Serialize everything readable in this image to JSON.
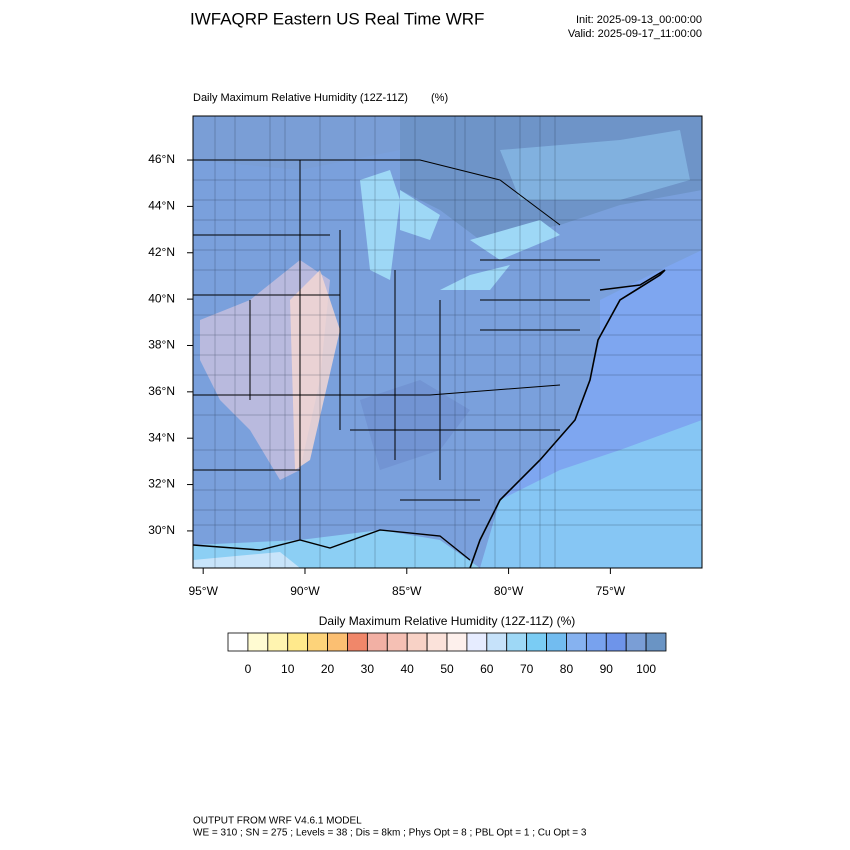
{
  "header": {
    "title": "IWFAQRP Eastern US Real Time WRF",
    "init": "Init: 2025-09-13_00:00:00",
    "valid": "Valid: 2025-09-17_11:00:00"
  },
  "map": {
    "title": "Daily Maximum Relative Humidity (12Z-11Z)",
    "units": "(%)",
    "xlim": [
      -95.5,
      -70.5
    ],
    "ylim": [
      28.4,
      47.9
    ],
    "xticks": [
      {
        "value": -95,
        "label": "95°W"
      },
      {
        "value": -90,
        "label": "90°W"
      },
      {
        "value": -85,
        "label": "85°W"
      },
      {
        "value": -80,
        "label": "80°W"
      },
      {
        "value": -75,
        "label": "75°W"
      }
    ],
    "yticks": [
      {
        "value": 30,
        "label": "30°N"
      },
      {
        "value": 32,
        "label": "32°N"
      },
      {
        "value": 34,
        "label": "34°N"
      },
      {
        "value": 36,
        "label": "36°N"
      },
      {
        "value": 38,
        "label": "38°N"
      },
      {
        "value": 40,
        "label": "40°N"
      },
      {
        "value": 42,
        "label": "42°N"
      },
      {
        "value": 44,
        "label": "44°N"
      },
      {
        "value": 46,
        "label": "46°N"
      }
    ]
  },
  "colorbar": {
    "title": "Daily Maximum Relative Humidity (12Z-11Z)  (%)",
    "lim": [
      -5,
      105
    ],
    "ticks": [
      0,
      10,
      20,
      30,
      40,
      50,
      60,
      70,
      80,
      90,
      100
    ],
    "colors": [
      "#ffffff",
      "#fffbd2",
      "#fff4b0",
      "#ffe98c",
      "#fdd37a",
      "#fbbf72",
      "#f0876a",
      "#f2b0a4",
      "#f5c0b4",
      "#f8d2c6",
      "#fbe2da",
      "#fdf0ec",
      "#e6ecff",
      "#c6e2fa",
      "#9ed8f6",
      "#7accf4",
      "#72bcf0",
      "#86b2f0",
      "#78a2ee",
      "#6e94ea",
      "#7a9ed6",
      "#6a94c4"
    ]
  },
  "footer": {
    "line1": "OUTPUT FROM WRF V4.6.1 MODEL",
    "line2": "WE = 310 ; SN = 275 ; Levels = 38 ; Dis = 8km ; Phys Opt = 8 ; PBL Opt = 1 ; Cu Opt = 3"
  }
}
